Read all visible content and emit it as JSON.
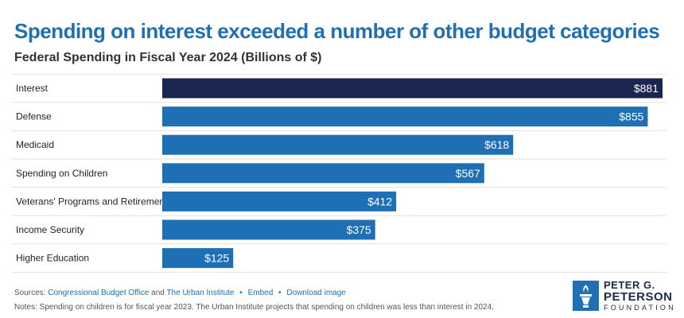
{
  "header": {
    "title": "Spending on interest exceeded a number of other budget categories",
    "subtitle": "Federal Spending in Fiscal Year 2024 (Billions of $)"
  },
  "chart_data": {
    "type": "bar",
    "orientation": "horizontal",
    "title": "Spending on interest exceeded a number of other budget categories",
    "subtitle": "Federal Spending in Fiscal Year 2024 (Billions of $)",
    "categories": [
      "Interest",
      "Defense",
      "Medicaid",
      "Spending on Children",
      "Veterans' Programs and Retirement",
      "Income Security",
      "Higher Education"
    ],
    "values": [
      881,
      855,
      618,
      567,
      412,
      375,
      125
    ],
    "value_labels": [
      "$881",
      "$855",
      "$618",
      "$567",
      "$412",
      "$375",
      "$125"
    ],
    "xlim": [
      0,
      881
    ],
    "grid": false,
    "legend": "none",
    "colors": {
      "highlight": "#1a2550",
      "default": "#1f6fb5"
    },
    "highlight_index": 0
  },
  "footer": {
    "sources_prefix": "Sources:",
    "sources": [
      "Congressional Budget Office",
      "The Urban Institute"
    ],
    "sources_joiner": "and",
    "links": [
      "Embed",
      "Download image"
    ],
    "notes": "Notes: Spending on children is for fiscal year 2023. The Urban Institute projects that spending on children was less than interest in 2024."
  },
  "logo": {
    "line1": "PETER G.",
    "line2": "PETERSON",
    "line3": "FOUNDATION",
    "color": "#1f6fb5"
  }
}
